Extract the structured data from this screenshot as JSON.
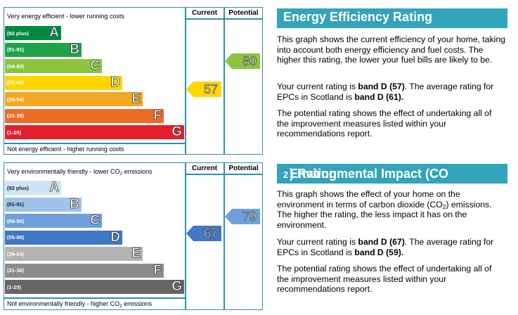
{
  "energy": {
    "top_caption": "Very energy efficient - lower running costs",
    "bottom_caption": "Not energy efficient - higher running costs",
    "col_current": "Current",
    "col_potential": "Potential",
    "bands": [
      {
        "range": "(92 plus)",
        "letter": "A",
        "color": "#008a3e"
      },
      {
        "range": "(81-91)",
        "letter": "B",
        "color": "#1fa34a"
      },
      {
        "range": "(69-80)",
        "letter": "C",
        "color": "#8cc43f"
      },
      {
        "range": "(55-68)",
        "letter": "D",
        "color": "#ffd500"
      },
      {
        "range": "(39-54)",
        "letter": "E",
        "color": "#f6a623"
      },
      {
        "range": "(21-38)",
        "letter": "F",
        "color": "#ec6c26"
      },
      {
        "range": "(1-20)",
        "letter": "G",
        "color": "#e4202d"
      }
    ],
    "current": {
      "value": "57",
      "color": "#ffd500"
    },
    "potential": {
      "value": "80",
      "color": "#8cc43f"
    },
    "heading": "Energy Efficiency Rating",
    "para1": "This graph shows the current efficiency of your home, taking into account both energy efficiency and fuel costs. The higher this rating, the lower your fuel bills are likely to be.",
    "para2_a": "Your current rating is ",
    "para2_b": "band D (57)",
    "para2_c": ". The average rating for EPCs in Scotland is ",
    "para2_d": "band D (61).",
    "para3": "The potential rating shows the effect of undertaking all of the improvement measures listed within your recommendations report."
  },
  "environment": {
    "top_caption_pre": "Very environmentally friendly - lower CO",
    "top_caption_sub": "2",
    "top_caption_post": " emissions",
    "bottom_caption_pre": "Not environmentally friendly - higher CO",
    "bottom_caption_sub": "2",
    "bottom_caption_post": " emissions",
    "col_current": "Current",
    "col_potential": "Potential",
    "bands": [
      {
        "range": "(92 plus)",
        "letter": "A",
        "color": "#cfe3f6"
      },
      {
        "range": "(81-91)",
        "letter": "B",
        "color": "#9fc2ea"
      },
      {
        "range": "(69-80)",
        "letter": "C",
        "color": "#6fa0dc"
      },
      {
        "range": "(55-68)",
        "letter": "D",
        "color": "#3f78c4"
      },
      {
        "range": "(39-54)",
        "letter": "E",
        "color": "#b3b3b3"
      },
      {
        "range": "(21-38)",
        "letter": "F",
        "color": "#8c8c8c"
      },
      {
        "range": "(1-20)",
        "letter": "G",
        "color": "#666666"
      }
    ],
    "current": {
      "value": "67",
      "color": "#3f78c4"
    },
    "potential": {
      "value": "79",
      "color": "#6fa0dc"
    },
    "heading_pre": "Environmental Impact (CO",
    "heading_sub": "2",
    "heading_post": ") Rating",
    "para1_a": "This graph shows the effect of your home on the environment in terms of carbon dioxide (CO",
    "para1_sub": "2",
    "para1_b": ") emissions. The higher the rating, the less impact it has on the environment.",
    "para2_a": "Your current rating is ",
    "para2_b": "band D (67)",
    "para2_c": ". The average rating for EPCs in Scotland is ",
    "para2_d": "band D (59).",
    "para3": "The potential rating shows the effect of undertaking all of the improvement measures listed within your recommendations report."
  }
}
